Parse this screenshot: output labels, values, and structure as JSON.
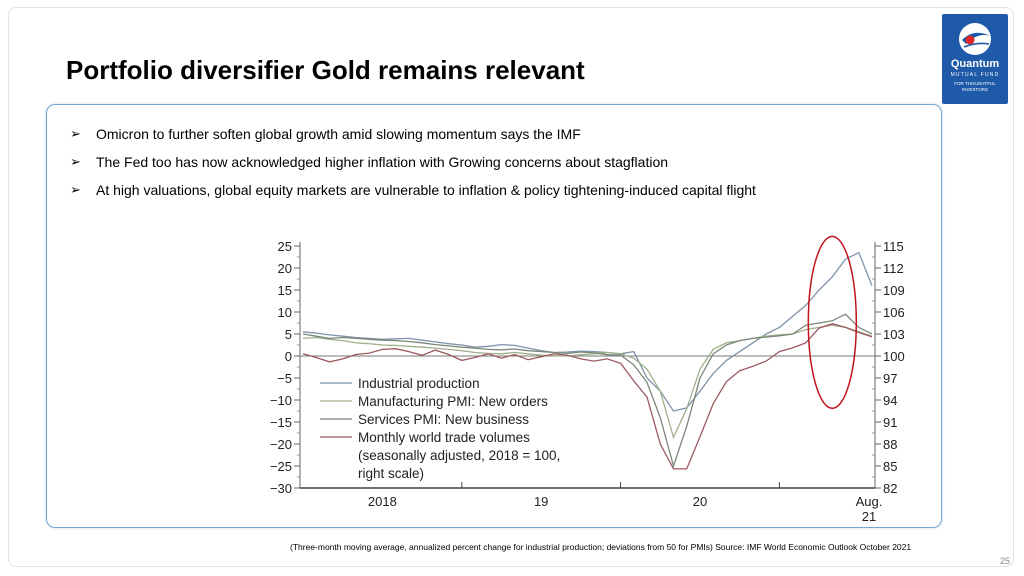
{
  "slide": {
    "title": "Portfolio diversifier Gold remains relevant",
    "bullets": [
      "Omicron to further soften global growth amid slowing momentum says the IMF",
      "The Fed too has now acknowledged higher inflation with Growing concerns about stagflation",
      "At high valuations, global equity markets are vulnerable to inflation & policy tightening-induced capital flight"
    ],
    "bullet_glyph": "➢",
    "footnote": "(Three-month moving average, annualized percent change for industrial production; deviations from 50 for PMIs)   Source: IMF World Economic Outlook October 2021",
    "page_number": "25",
    "logo": {
      "name": "Quantum",
      "sub": "MUTUAL FUND",
      "tagline_1": "FOR THOUGHTFUL",
      "tagline_2": "INVESTORS",
      "bg_color": "#1f5aa8"
    }
  },
  "chart_data": {
    "type": "line",
    "title": "",
    "x_ticks": [
      "2018",
      "19",
      "20",
      "Aug.\n21"
    ],
    "x_range": [
      "2018-01",
      "2021-08"
    ],
    "left_axis": {
      "ticks": [
        25,
        20,
        15,
        10,
        5,
        0,
        -5,
        -10,
        -15,
        -20,
        -25,
        -30
      ],
      "ylim": [
        -30,
        25
      ]
    },
    "right_axis": {
      "ticks": [
        115,
        112,
        109,
        106,
        103,
        100,
        97,
        94,
        91,
        88,
        85,
        82
      ],
      "ylim": [
        82,
        115
      ]
    },
    "legend": [
      "Industrial production",
      "Manufacturing PMI: New orders",
      "Services PMI: New business",
      "Monthly world trade volumes (seasonally adjusted, 2018 = 100, right scale)"
    ],
    "legend_lines": [
      "Industrial production",
      "Manufacturing PMI: New orders",
      "Services PMI: New business",
      "Monthly world trade volumes",
      "(seasonally adjusted, 2018 = 100,",
      "right scale)"
    ],
    "legend_placement": "lower-left",
    "reference_line": 0,
    "highlight": "red ellipse around latest months (2021)",
    "series": [
      {
        "name": "Industrial production",
        "axis": "left",
        "color": "#7f93aa",
        "values": [
          5.5,
          5.2,
          4.8,
          4.5,
          4.2,
          4.0,
          3.8,
          3.9,
          4.0,
          3.6,
          3.2,
          2.8,
          2.5,
          2.0,
          2.2,
          2.6,
          2.4,
          1.8,
          1.2,
          0.8,
          0.9,
          1.1,
          1.0,
          0.8,
          0.5,
          1.0,
          -5.0,
          -8.0,
          -12.5,
          -11.8,
          -8.0,
          -4.0,
          -1.0,
          1.0,
          3.0,
          5.0,
          6.5,
          9.0,
          11.5,
          15.0,
          18.0,
          22.0,
          23.5,
          16.0
        ]
      },
      {
        "name": "Manufacturing PMI: New orders",
        "axis": "left",
        "color": "#9fb08a",
        "values": [
          4.0,
          4.2,
          3.8,
          3.5,
          3.0,
          2.8,
          2.5,
          2.4,
          2.2,
          2.0,
          1.8,
          1.5,
          1.2,
          0.8,
          0.6,
          0.5,
          0.8,
          0.5,
          0.2,
          0.1,
          0.0,
          0.3,
          0.5,
          0.8,
          0.5,
          -0.5,
          -3.0,
          -8.0,
          -18.5,
          -12.0,
          -3.0,
          1.5,
          3.0,
          3.5,
          4.0,
          4.5,
          4.8,
          5.0,
          6.0,
          6.5,
          7.0,
          6.5,
          5.5,
          4.5
        ]
      },
      {
        "name": "Services PMI: New business",
        "axis": "left",
        "color": "#7a8878",
        "values": [
          5.0,
          4.5,
          4.0,
          4.2,
          4.0,
          3.8,
          3.6,
          3.5,
          3.3,
          3.0,
          2.6,
          2.3,
          2.0,
          1.8,
          1.5,
          1.4,
          1.6,
          1.2,
          1.0,
          0.8,
          0.6,
          0.9,
          0.7,
          0.3,
          0.2,
          -2.0,
          -6.0,
          -14.0,
          -25.0,
          -16.0,
          -5.0,
          0.5,
          2.5,
          3.5,
          4.0,
          4.3,
          4.6,
          5.0,
          7.0,
          7.5,
          8.0,
          9.5,
          6.5,
          5.0
        ]
      },
      {
        "name": "Monthly world trade volumes",
        "axis": "right",
        "color": "#9c5a60",
        "values": [
          100.3,
          99.8,
          99.2,
          99.6,
          100.2,
          100.4,
          100.9,
          101.0,
          100.6,
          100.1,
          100.8,
          100.2,
          99.4,
          99.8,
          100.3,
          99.7,
          100.2,
          99.5,
          99.9,
          100.3,
          100.1,
          99.6,
          99.3,
          99.6,
          99.0,
          96.6,
          94.4,
          88.0,
          84.6,
          84.6,
          89.0,
          93.5,
          96.5,
          98.0,
          98.6,
          99.3,
          100.6,
          101.1,
          101.8,
          103.8,
          104.4,
          103.9,
          103.2,
          102.6
        ]
      }
    ]
  }
}
